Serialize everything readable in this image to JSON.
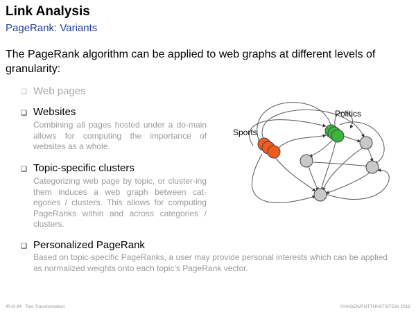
{
  "header": {
    "title": "Link Analysis",
    "subtitle": "PageRank: Variants"
  },
  "intro": "The PageRank algorithm can be applied to web graphs at different levels of granularity:",
  "items": [
    {
      "bullet": "❑",
      "title": "Web pages",
      "desc": ""
    },
    {
      "bullet": "❑",
      "title": "Websites",
      "desc": "Combining all pages hosted under a do-main allows for computing the importance of websites as a whole."
    },
    {
      "bullet": "❑",
      "title": "Topic-specific clusters",
      "desc": "Categorizing web page by topic, or cluster-ing them induces a web graph between cat-egories / clusters. This allows for computing PageRanks within and across categories / clusters."
    },
    {
      "bullet": "❑",
      "title": "Personalized PageRank",
      "desc": "Based on topic-specific PageRanks, a user may provide personal interests which can be applied as normalized weights onto each topic’s PageRank vector."
    }
  ],
  "figure": {
    "label_sports": "Sports",
    "label_politics": "Politics",
    "colors": {
      "sports": "#f05a1e",
      "politics": "#3cb53c",
      "other": "#c8c8c8"
    }
  },
  "footer": {
    "course": "IR:III-94",
    "topic": "Text Transformation",
    "copyright": "©HAGEN/POTTHAST/STEIN 2018"
  }
}
